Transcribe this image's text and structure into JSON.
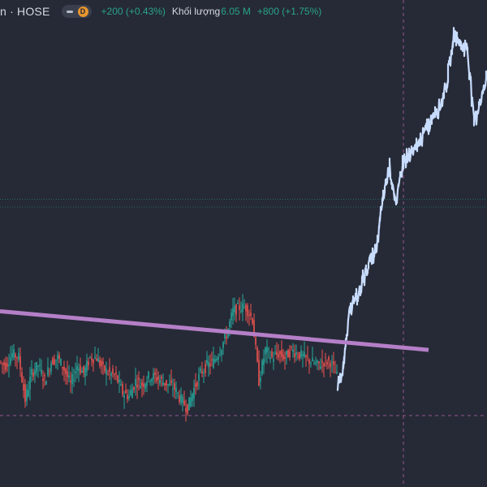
{
  "header": {
    "symbol": "n · HOSE",
    "interval_badge": "D",
    "price_change": "+200 (+0.43%)",
    "volume_label": "Khối lượng",
    "volume_value": "6.05 M",
    "volume_change": "+800 (+1.75%)"
  },
  "colors": {
    "background": "#262a36",
    "price_line": "#c8dcff",
    "candle_up": "#26a69a",
    "candle_down": "#ef5350",
    "trendline": "#b57fc8",
    "crosshair": "#a05a9a",
    "level_line": "#1f7a73"
  },
  "chart_data": {
    "type": "line",
    "title": "",
    "xlabel": "",
    "ylabel": "",
    "series_style": "candles-then-line",
    "price_range_relative": [
      0,
      100
    ],
    "segments": [
      {
        "name": "",
        "style": "candles",
        "x": [
          0,
          8,
          16,
          24,
          32,
          40,
          48,
          56,
          64,
          72,
          80,
          88,
          96,
          104,
          112,
          120,
          128,
          136,
          144,
          152,
          160,
          168,
          176,
          184,
          192,
          200,
          208,
          216,
          224,
          232,
          240,
          248,
          256,
          264,
          272,
          280,
          288,
          296,
          304,
          312,
          320,
          328,
          336,
          344,
          352,
          360,
          368,
          376,
          384,
          392,
          400,
          408,
          416
        ],
        "y": [
          14,
          13,
          16,
          15,
          4,
          11,
          13,
          9,
          14,
          15,
          12,
          8,
          13,
          11,
          15,
          15,
          12,
          11,
          10,
          6,
          5,
          9,
          8,
          10,
          10,
          9,
          8,
          7,
          4,
          2,
          7,
          11,
          13,
          14,
          17,
          21,
          27,
          28,
          28,
          25,
          9,
          17,
          15,
          16,
          15,
          17,
          16,
          15,
          14,
          13,
          14,
          14,
          10
        ]
      },
      {
        "name": "",
        "style": "line",
        "x": [
          416,
          424,
          432,
          440,
          448,
          456,
          464,
          472,
          480,
          488,
          496,
          504,
          512,
          520,
          528,
          536,
          544,
          552,
          560,
          568,
          576,
          584,
          592,
          600
        ],
        "y": [
          8,
          14,
          29,
          30,
          36,
          40,
          43,
          57,
          65,
          54,
          66,
          67,
          69,
          72,
          75,
          79,
          81,
          88,
          99,
          96,
          95,
          76,
          82,
          87
        ]
      }
    ],
    "trendline": {
      "x": [
        0,
        528
      ],
      "y": [
        27,
        17
      ]
    },
    "horizontal_levels": [
      56,
      54,
      0
    ],
    "vertical_marker_x": [
      497
    ]
  }
}
